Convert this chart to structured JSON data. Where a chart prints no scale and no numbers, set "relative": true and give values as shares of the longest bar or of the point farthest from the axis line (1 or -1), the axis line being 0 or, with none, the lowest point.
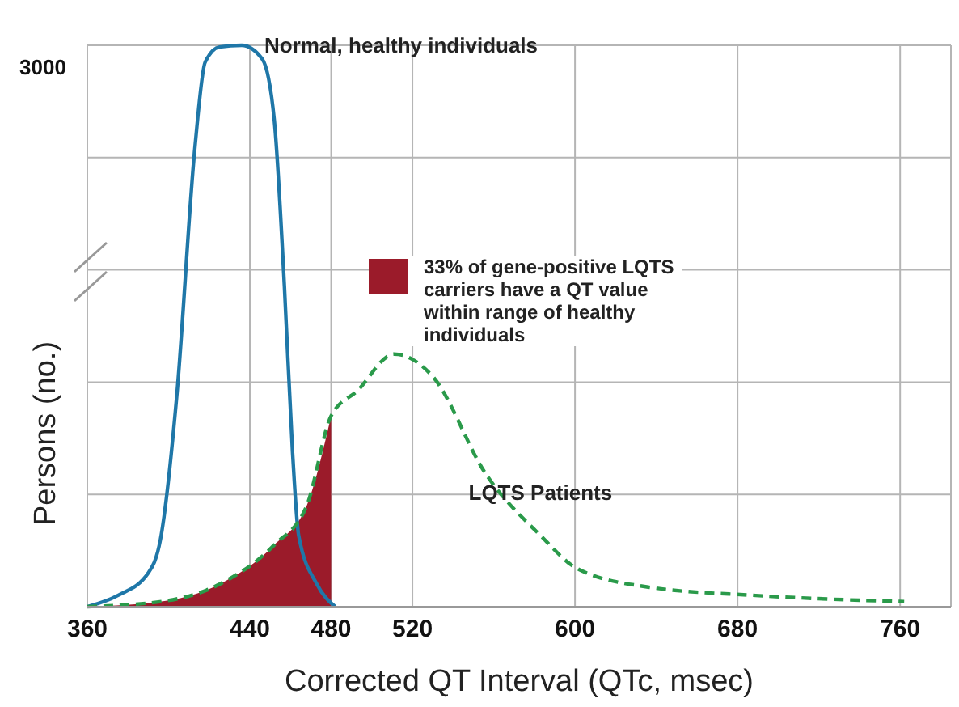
{
  "chart_data": {
    "type": "line",
    "relative": true,
    "xlabel": "Corrected QT Interval (QTc, msec)",
    "ylabel": "Persons (no.)",
    "xlim": [
      360,
      785
    ],
    "xticks": [
      360,
      440,
      480,
      520,
      600,
      680,
      760
    ],
    "grid": true,
    "legend": "right",
    "marker": "none",
    "annotations": [
      "3000"
    ],
    "series": [
      {
        "name": "Normal, healthy individuals",
        "type": "line",
        "line_style": "solid",
        "color": "#1f77a8",
        "x": [
          360,
          375,
          390,
          396,
          404,
          413,
          418,
          425,
          436,
          446,
          452,
          457,
          461,
          464,
          473,
          482
        ],
        "values": [
          0,
          0.02,
          0.06,
          0.12,
          0.375,
          0.82,
          0.97,
          0.997,
          1,
          0.976,
          0.867,
          0.57,
          0.275,
          0.127,
          0.04,
          0
        ]
      },
      {
        "name": "33% of gene-positive LQTS carriers have a QT value within range of healthy individuals",
        "type": "area",
        "color": "#9b1b2a",
        "x": [
          360,
          398,
          425,
          452,
          468,
          480
        ],
        "values": [
          0,
          0.01,
          0.04,
          0.11,
          0.18,
          0.34
        ]
      },
      {
        "name": "LQTS Patients",
        "type": "line",
        "line_style": "dashed",
        "color": "#2a9a4a",
        "x": [
          360,
          398,
          425,
          452,
          468,
          480,
          493,
          511,
          530,
          556,
          583,
          601,
          636,
          689,
          762
        ],
        "values": [
          0,
          0.01,
          0.04,
          0.11,
          0.18,
          0.34,
          0.385,
          0.45,
          0.41,
          0.237,
          0.127,
          0.068,
          0.035,
          0.02,
          0.009
        ]
      }
    ]
  }
}
